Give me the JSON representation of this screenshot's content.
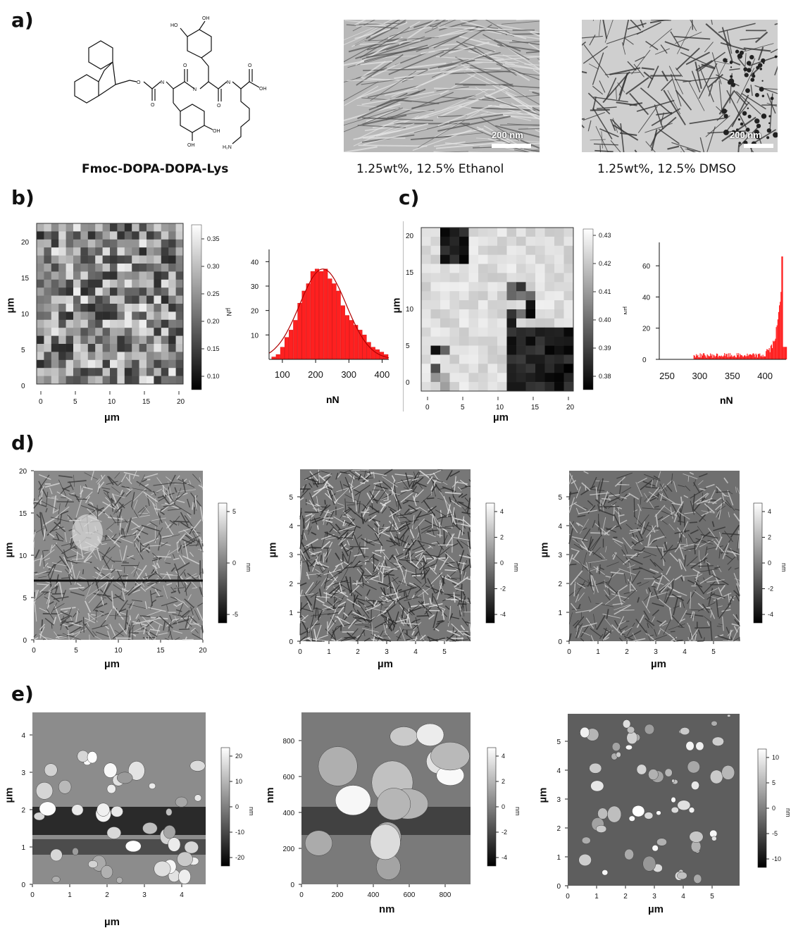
{
  "panel_labels": {
    "a": "a)",
    "b": "b)",
    "c": "c)",
    "d": "d)",
    "e": "e)"
  },
  "molecule": {
    "name": "Fmoc-DOPA-DOPA-Lys",
    "atom_labels": {
      "oh": "OH",
      "ho": "HO",
      "o": "O",
      "n": "N",
      "nh2": "H₂N"
    }
  },
  "tem": [
    {
      "caption": "1.25wt%, 12.5% Ethanol",
      "scale": "200 nm"
    },
    {
      "caption": "1.25wt%, 12.5% DMSO",
      "scale": "200 nm"
    }
  ],
  "panel_b": {
    "map": {
      "xlabel": "µm",
      "ylabel": "µm",
      "xticks": [
        "0",
        "5",
        "10",
        "15",
        "20"
      ],
      "yticks": [
        "0",
        "5",
        "10",
        "15",
        "20"
      ],
      "colorbar_unit": "µN",
      "colorbar_ticks": [
        "0.10",
        "0.15",
        "0.20",
        "0.25",
        "0.30",
        "0.35"
      ]
    }
  },
  "panel_c": {
    "map": {
      "xlabel": "µm",
      "ylabel": "µm",
      "xticks": [
        "0",
        "5",
        "10",
        "15",
        "20"
      ],
      "yticks": [
        "0",
        "5",
        "10",
        "15",
        "20"
      ],
      "colorbar_unit": "µN",
      "colorbar_ticks": [
        "0.38",
        "0.39",
        "0.40",
        "0.41",
        "0.42",
        "0.43"
      ]
    }
  },
  "panel_d": [
    {
      "xlabel": "µm",
      "ylabel": "µm",
      "xticks": [
        "0",
        "5",
        "10",
        "15",
        "20"
      ],
      "yticks": [
        "0",
        "5",
        "10",
        "15",
        "20"
      ],
      "cb_unit": "nm",
      "cb_ticks": [
        "5",
        "0",
        "-5"
      ]
    },
    {
      "xlabel": "µm",
      "ylabel": "µm",
      "xticks": [
        "0",
        "1",
        "2",
        "3",
        "4",
        "5"
      ],
      "yticks": [
        "0",
        "1",
        "2",
        "3",
        "4",
        "5"
      ],
      "cb_unit": "nm",
      "cb_ticks": [
        "4",
        "2",
        "0",
        "-2",
        "-4"
      ]
    },
    {
      "xlabel": "µm",
      "ylabel": "µm",
      "xticks": [
        "0",
        "1",
        "2",
        "3",
        "4",
        "5"
      ],
      "yticks": [
        "0",
        "1",
        "2",
        "3",
        "4",
        "5"
      ],
      "cb_unit": "nm",
      "cb_ticks": [
        "4",
        "2",
        "0",
        "-2",
        "-4"
      ]
    }
  ],
  "panel_e": [
    {
      "xlabel": "µm",
      "ylabel": "µm",
      "xticks": [
        "0",
        "1",
        "2",
        "3",
        "4"
      ],
      "yticks": [
        "0",
        "1",
        "2",
        "3",
        "4"
      ],
      "cb_unit": "nm",
      "cb_ticks": [
        "20",
        "10",
        "0",
        "-10",
        "-20"
      ]
    },
    {
      "xlabel": "nm",
      "ylabel": "nm",
      "xticks": [
        "0",
        "200",
        "400",
        "600",
        "800"
      ],
      "yticks": [
        "0",
        "200",
        "400",
        "600",
        "800"
      ],
      "cb_unit": "nm",
      "cb_ticks": [
        "4",
        "2",
        "0",
        "-2",
        "-4"
      ]
    },
    {
      "xlabel": "µm",
      "ylabel": "µm",
      "xticks": [
        "0",
        "1",
        "2",
        "3",
        "4",
        "5"
      ],
      "yticks": [
        "0",
        "1",
        "2",
        "3",
        "4",
        "5"
      ],
      "cb_unit": "nm",
      "cb_ticks": [
        "10",
        "5",
        "0",
        "-5",
        "-10"
      ]
    }
  ],
  "chart_data": [
    {
      "type": "bar",
      "xlabel": "nN",
      "ylabel": "",
      "xlim": [
        60,
        420
      ],
      "ylim": [
        0,
        45
      ],
      "xticks": [
        100,
        200,
        300,
        400
      ],
      "yticks": [
        10,
        20,
        30,
        40
      ],
      "bin_width": 13,
      "x": [
        68,
        81,
        94,
        107,
        120,
        133,
        146,
        159,
        172,
        185,
        198,
        211,
        224,
        237,
        250,
        263,
        276,
        289,
        302,
        315,
        328,
        341,
        354,
        367,
        380,
        393,
        406
      ],
      "values": [
        1,
        2,
        5,
        9,
        12,
        16,
        23,
        28,
        31,
        36,
        37,
        36,
        37,
        33,
        31,
        28,
        22,
        18,
        16,
        14,
        12,
        10,
        7,
        5,
        4,
        3,
        2
      ],
      "fit": "gaussian",
      "color": "#ff2020"
    },
    {
      "type": "bar",
      "xlabel": "nN",
      "ylabel": "",
      "xlim": [
        238,
        432
      ],
      "ylim": [
        0,
        75
      ],
      "xticks": [
        250,
        300,
        350,
        400
      ],
      "yticks": [
        0,
        20,
        40,
        60
      ],
      "color": "#ff2020"
    }
  ]
}
